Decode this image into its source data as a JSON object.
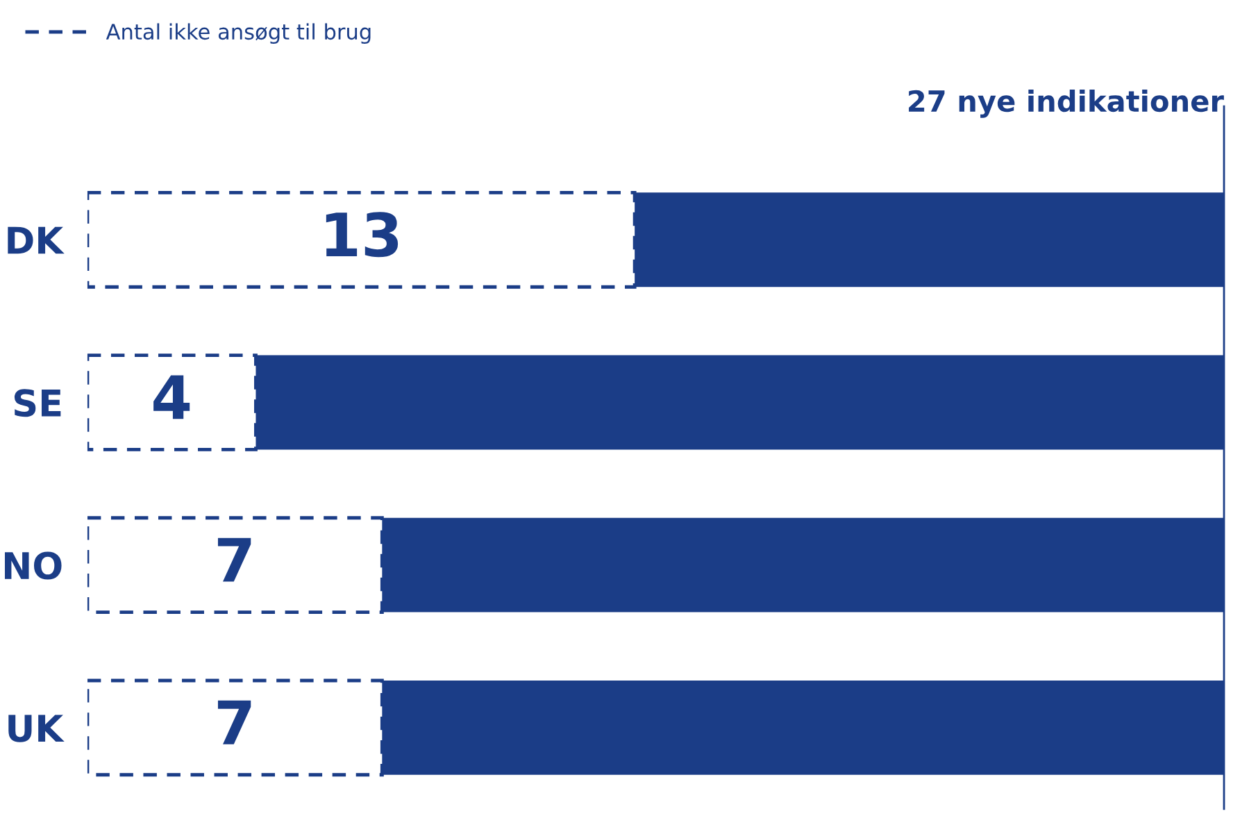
{
  "chart_data": {
    "type": "bar",
    "orientation": "horizontal",
    "stacked": true,
    "categories": [
      "DK",
      "SE",
      "NO",
      "UK"
    ],
    "series": [
      {
        "name": "Antal ikke ansøgt til brug",
        "color": "#1b3d87",
        "line_style": "dashed",
        "values": [
          13,
          4,
          7,
          7
        ],
        "value_labels": [
          "13",
          "4",
          "7",
          "7"
        ]
      },
      {
        "color": "#1b3d87",
        "values": [
          14,
          23,
          20,
          20
        ]
      }
    ],
    "xlim": [
      0,
      27
    ],
    "tick_labels": "y",
    "ref_lines": [
      {
        "axis": "x",
        "value": 27,
        "label": "27 nye indikationer",
        "color": "#1b3d87"
      }
    ],
    "legend": "top left",
    "grid": false
  }
}
